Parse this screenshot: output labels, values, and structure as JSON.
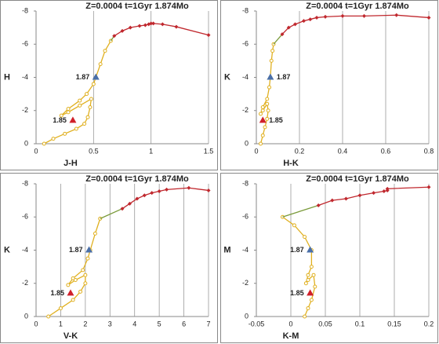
{
  "chart_data": [
    {
      "type": "line",
      "title": "Z=0.0004  t=1Gyr  1.874Mo",
      "xlabel": "J-H",
      "ylabel": "H",
      "xlim": [
        0,
        1.5
      ],
      "xticks": [
        0,
        0.5,
        1,
        1.5
      ],
      "ylim": [
        0,
        -8
      ],
      "yticks": [
        0,
        -2,
        -4,
        -6,
        -8
      ],
      "grid": "x",
      "series": [
        {
          "color": "#e0b020",
          "marker": "circle",
          "x": [
            0.07,
            0.15,
            0.25,
            0.35,
            0.42,
            0.45,
            0.47,
            0.48,
            0.38,
            0.28,
            0.22,
            0.28,
            0.38,
            0.44,
            0.5,
            0.52,
            0.56,
            0.6,
            0.65
          ],
          "values": [
            0,
            -0.3,
            -0.6,
            -0.9,
            -1.2,
            -1.6,
            -2.2,
            -2.7,
            -2.3,
            -1.9,
            -1.7,
            -2.1,
            -2.6,
            -3.0,
            -3.6,
            -4.0,
            -4.8,
            -5.6,
            -6.2
          ]
        },
        {
          "color": "#7a9a3a",
          "marker": "none",
          "x": [
            0.65,
            0.68
          ],
          "values": [
            -6.2,
            -6.5
          ]
        },
        {
          "color": "#c0282e",
          "marker": "diamond",
          "x": [
            0.68,
            0.75,
            0.82,
            0.9,
            0.95,
            0.98,
            1.0,
            1.02,
            1.1,
            1.22,
            1.5
          ],
          "values": [
            -6.5,
            -6.8,
            -7.0,
            -7.1,
            -7.15,
            -7.2,
            -7.25,
            -7.25,
            -7.2,
            -7.05,
            -6.55
          ]
        }
      ],
      "markers": [
        {
          "label": "1.87",
          "x": 0.52,
          "y": -4.0,
          "color": "#4a6fa8",
          "label_position": "left"
        },
        {
          "label": "1.85",
          "x": 0.32,
          "y": -1.4,
          "color": "#d0202a",
          "label_position": "left"
        }
      ]
    },
    {
      "type": "line",
      "title": "Z=0.0004  t=1Gyr  1.874Mo",
      "xlabel": "H-K",
      "ylabel": "K",
      "xlim": [
        0,
        0.8
      ],
      "xticks": [
        0,
        0.2,
        0.4,
        0.6,
        0.8
      ],
      "ylim": [
        0,
        -8
      ],
      "yticks": [
        0,
        -2,
        -4,
        -6,
        -8
      ],
      "grid": "x",
      "series": [
        {
          "color": "#e0b020",
          "marker": "circle",
          "x": [
            0.02,
            0.03,
            0.04,
            0.05,
            0.055,
            0.05,
            0.03,
            0.02,
            0.03,
            0.05,
            0.06,
            0.065,
            0.07,
            0.075,
            0.08
          ],
          "values": [
            0,
            -0.5,
            -1,
            -1.5,
            -2,
            -2.4,
            -2,
            -1.8,
            -2.2,
            -2.7,
            -3.4,
            -4,
            -5,
            -5.6,
            -6
          ]
        },
        {
          "color": "#7a9a3a",
          "marker": "none",
          "x": [
            0.08,
            0.12
          ],
          "values": [
            -6,
            -6.6
          ]
        },
        {
          "color": "#c0282e",
          "marker": "diamond",
          "x": [
            0.12,
            0.15,
            0.18,
            0.22,
            0.25,
            0.28,
            0.32,
            0.4,
            0.5,
            0.65,
            0.8
          ],
          "values": [
            -6.6,
            -7,
            -7.2,
            -7.4,
            -7.5,
            -7.6,
            -7.65,
            -7.7,
            -7.7,
            -7.75,
            -7.6
          ]
        }
      ],
      "markers": [
        {
          "label": "1.87",
          "x": 0.065,
          "y": -4.0,
          "color": "#4a6fa8",
          "label_position": "right"
        },
        {
          "label": "1.85",
          "x": 0.03,
          "y": -1.4,
          "color": "#d0202a",
          "label_position": "right"
        }
      ]
    },
    {
      "type": "line",
      "title": "Z=0.0004  t=1Gyr  1.874Mo",
      "xlabel": "V-K",
      "ylabel": "K",
      "xlim": [
        0,
        7
      ],
      "xticks": [
        0,
        1,
        2,
        3,
        4,
        5,
        6,
        7
      ],
      "ylim": [
        0,
        -8
      ],
      "yticks": [
        0,
        -2,
        -4,
        -6,
        -8
      ],
      "grid": "x",
      "series": [
        {
          "color": "#e0b020",
          "marker": "circle",
          "x": [
            0.5,
            1,
            1.5,
            1.8,
            2,
            2,
            1.6,
            1.3,
            1.5,
            1.9,
            2.1,
            2.2,
            2.4,
            2.6
          ],
          "values": [
            0,
            -0.5,
            -1,
            -1.5,
            -2,
            -2.5,
            -2.2,
            -1.9,
            -2.3,
            -2.8,
            -3.5,
            -4,
            -5,
            -5.9
          ]
        },
        {
          "color": "#7a9a3a",
          "marker": "none",
          "x": [
            2.6,
            3.5
          ],
          "values": [
            -5.9,
            -6.5
          ]
        },
        {
          "color": "#c0282e",
          "marker": "diamond",
          "x": [
            3.5,
            3.8,
            4.1,
            4.4,
            4.7,
            5,
            5.3,
            6.2,
            7
          ],
          "values": [
            -6.5,
            -6.8,
            -7.1,
            -7.3,
            -7.45,
            -7.55,
            -7.65,
            -7.75,
            -7.6
          ]
        }
      ],
      "markers": [
        {
          "label": "1.87",
          "x": 2.15,
          "y": -4.0,
          "color": "#4a6fa8",
          "label_position": "left"
        },
        {
          "label": "1.85",
          "x": 1.4,
          "y": -1.4,
          "color": "#d0202a",
          "label_position": "left"
        }
      ]
    },
    {
      "type": "line",
      "title": "Z=0.0004  t=1Gyr  1.874Mo",
      "xlabel": "K-M",
      "ylabel": "M",
      "xlim": [
        -0.05,
        0.2
      ],
      "xticks": [
        -0.05,
        0,
        0.05,
        0.1,
        0.15,
        0.2
      ],
      "ylim": [
        0,
        -8
      ],
      "yticks": [
        0,
        -2,
        -4,
        -6,
        -8
      ],
      "grid": "x",
      "series": [
        {
          "color": "#e0b020",
          "marker": "circle",
          "x": [
            0.02,
            0.025,
            0.03,
            0.035,
            0.033,
            0.025,
            0.022,
            0.025,
            0.03,
            0.03,
            0.02,
            0.005,
            -0.012
          ],
          "values": [
            0,
            -0.5,
            -1,
            -1.8,
            -2.5,
            -2.2,
            -2,
            -2.5,
            -3,
            -4,
            -4.8,
            -5.5,
            -6
          ]
        },
        {
          "color": "#7a9a3a",
          "marker": "none",
          "x": [
            -0.012,
            0.04
          ],
          "values": [
            -6,
            -6.7
          ]
        },
        {
          "color": "#c0282e",
          "marker": "diamond",
          "x": [
            0.04,
            0.06,
            0.08,
            0.1,
            0.12,
            0.135,
            0.14,
            0.14,
            0.2
          ],
          "values": [
            -6.7,
            -7,
            -7.1,
            -7.3,
            -7.45,
            -7.55,
            -7.6,
            -7.7,
            -7.8
          ]
        }
      ],
      "markers": [
        {
          "label": "1.87",
          "x": 0.028,
          "y": -4.0,
          "color": "#4a6fa8",
          "label_position": "left"
        },
        {
          "label": "1.85",
          "x": 0.028,
          "y": -1.4,
          "color": "#d0202a",
          "label_position": "left"
        }
      ]
    }
  ]
}
